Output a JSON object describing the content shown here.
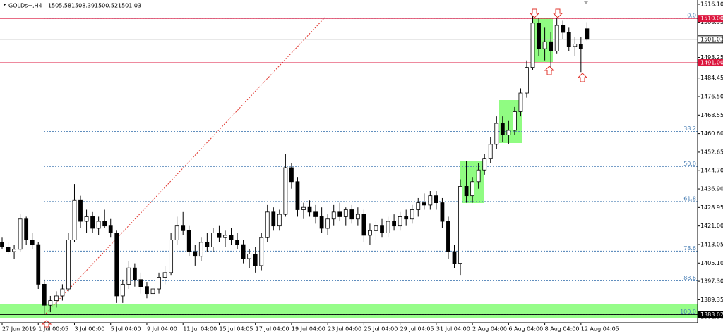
{
  "chart_data": {
    "type": "candlestick",
    "title": "GOLDs+,H4",
    "categories": [
      "27 Jun 2019",
      null,
      null,
      null,
      null,
      null,
      "1 Jul 00:05",
      null,
      null,
      null,
      null,
      null,
      "3 Jul 00:00",
      null,
      null,
      null,
      null,
      null,
      "5 Jul 04:00",
      null,
      null,
      null,
      null,
      null,
      "9 Jul 04:00",
      null,
      null,
      null,
      null,
      null,
      "11 Jul 04:00",
      null,
      null,
      null,
      null,
      null,
      "15 Jul 04:05",
      null,
      null,
      null,
      null,
      null,
      "17 Jul 04:00",
      null,
      null,
      null,
      null,
      null,
      "19 Jul 04:00",
      null,
      null,
      null,
      null,
      null,
      "23 Jul 04:00",
      null,
      null,
      null,
      null,
      null,
      "25 Jul 04:00",
      null,
      null,
      null,
      null,
      null,
      "29 Jul 04:05",
      null,
      null,
      null,
      null,
      null,
      "31 Jul 04:00",
      null,
      null,
      null,
      null,
      null,
      "2 Aug 04:00",
      null,
      null,
      null,
      null,
      null,
      "6 Aug 04:00",
      null,
      null,
      null,
      null,
      null,
      "8 Aug 04:00",
      null,
      null,
      null,
      null,
      null,
      "12 Aug 04:05",
      null
    ],
    "open": [
      1414,
      1412,
      1410,
      1411,
      1424,
      1415,
      1413,
      1396,
      1387,
      1389,
      1391,
      1394,
      1415,
      1432,
      1423,
      1425,
      1420,
      1423,
      1421,
      1418,
      1391,
      1396,
      1403,
      1398,
      1395,
      1392,
      1394,
      1399,
      1401,
      1415,
      1421,
      1419,
      1410,
      1408,
      1414,
      1412,
      1418,
      1416,
      1417,
      1415,
      1413,
      1407,
      1409,
      1404,
      1416,
      1427,
      1421,
      1426,
      1446,
      1440,
      1428,
      1429,
      1427,
      1425,
      1420,
      1424,
      1427,
      1425,
      1428,
      1424,
      1426,
      1417,
      1419,
      1421,
      1418,
      1423,
      1421,
      1425,
      1424,
      1428,
      1431,
      1430,
      1434,
      1431,
      1423,
      1410,
      1405,
      1438,
      1434,
      1440,
      1445,
      1450,
      1456,
      1465,
      1460,
      1462,
      1470,
      1478,
      1489,
      1508,
      1497,
      1500,
      1496,
      1507,
      1504,
      1498,
      1499,
      1505.58
    ],
    "high": [
      1416,
      1414,
      1413,
      1426,
      1425,
      1418,
      1414,
      1398,
      1391,
      1393,
      1396,
      1418,
      1439,
      1434,
      1428,
      1427,
      1425,
      1428,
      1424,
      1419,
      1398,
      1406,
      1405,
      1401,
      1397,
      1396,
      1401,
      1404,
      1418,
      1425,
      1427,
      1421,
      1413,
      1416,
      1418,
      1420,
      1421,
      1419,
      1420,
      1418,
      1415,
      1411,
      1412,
      1418,
      1430,
      1429,
      1428,
      1452,
      1448,
      1442,
      1431,
      1432,
      1430,
      1429,
      1426,
      1430,
      1431,
      1429,
      1430,
      1429,
      1428,
      1422,
      1423,
      1424,
      1425,
      1426,
      1427,
      1428,
      1430,
      1433,
      1435,
      1436,
      1436,
      1433,
      1425,
      1413,
      1441,
      1449,
      1442,
      1448,
      1452,
      1459,
      1468,
      1468,
      1466,
      1472,
      1480,
      1492,
      1511,
      1510,
      1506,
      1504,
      1510,
      1509,
      1506,
      1502,
      1502,
      1508.39
    ],
    "low": [
      1411,
      1409,
      1407,
      1410,
      1413,
      1411,
      1394,
      1383,
      1384,
      1386,
      1389,
      1393,
      1414,
      1420,
      1418,
      1418,
      1417,
      1420,
      1416,
      1388,
      1388,
      1394,
      1395,
      1392,
      1390,
      1387,
      1392,
      1396,
      1400,
      1413,
      1417,
      1408,
      1404,
      1406,
      1410,
      1410,
      1414,
      1412,
      1413,
      1411,
      1405,
      1403,
      1401,
      1402,
      1414,
      1419,
      1419,
      1425,
      1437,
      1425,
      1424,
      1425,
      1422,
      1418,
      1417,
      1421,
      1423,
      1421,
      1422,
      1421,
      1414,
      1413,
      1415,
      1416,
      1416,
      1419,
      1419,
      1421,
      1422,
      1425,
      1428,
      1428,
      1428,
      1420,
      1407,
      1403,
      1400,
      1431,
      1431,
      1437,
      1443,
      1448,
      1454,
      1457,
      1456,
      1460,
      1468,
      1476,
      1488,
      1494,
      1492,
      1489,
      1495,
      1501,
      1496,
      1494,
      1487,
      1500.52
    ],
    "close": [
      1412,
      1410,
      1411,
      1424,
      1415,
      1413,
      1396,
      1387,
      1389,
      1391,
      1394,
      1415,
      1432,
      1423,
      1425,
      1420,
      1423,
      1421,
      1418,
      1391,
      1396,
      1403,
      1398,
      1395,
      1392,
      1394,
      1399,
      1401,
      1415,
      1421,
      1419,
      1410,
      1408,
      1414,
      1412,
      1418,
      1416,
      1417,
      1415,
      1413,
      1407,
      1409,
      1404,
      1416,
      1427,
      1421,
      1426,
      1446,
      1440,
      1428,
      1429,
      1427,
      1425,
      1420,
      1424,
      1427,
      1425,
      1428,
      1424,
      1426,
      1417,
      1419,
      1421,
      1418,
      1423,
      1421,
      1425,
      1424,
      1428,
      1431,
      1430,
      1434,
      1431,
      1423,
      1410,
      1405,
      1438,
      1434,
      1440,
      1445,
      1450,
      1456,
      1465,
      1460,
      1462,
      1470,
      1478,
      1489,
      1508,
      1497,
      1500,
      1496,
      1507,
      1504,
      1498,
      1499,
      1497,
      1501.03
    ],
    "ylim": [
      1379.5,
      1517.9
    ],
    "yticks": [
      {
        "value": 1516.1,
        "label": "1516.10"
      },
      {
        "value": 1508.35,
        "label": "1508.35"
      },
      {
        "value": 1493.25,
        "label": "1493.25"
      },
      {
        "value": 1484.45,
        "label": "1484.45"
      },
      {
        "value": 1476.5,
        "label": "1476.50"
      },
      {
        "value": 1468.55,
        "label": "1468.55"
      },
      {
        "value": 1460.6,
        "label": "1460.60"
      },
      {
        "value": 1452.65,
        "label": "1452.65"
      },
      {
        "value": 1444.7,
        "label": "1444.70"
      },
      {
        "value": 1436.9,
        "label": "1436.90"
      },
      {
        "value": 1428.95,
        "label": "1428.95"
      },
      {
        "value": 1421,
        "label": "1421.00"
      },
      {
        "value": 1413.05,
        "label": "1413.05"
      },
      {
        "value": 1405.1,
        "label": "1405.10"
      },
      {
        "value": 1397.3,
        "label": "1397.30"
      },
      {
        "value": 1389.35,
        "label": "1389.35"
      },
      {
        "value": 1381.9,
        "label": "1381.90"
      }
    ],
    "levels": [
      {
        "value": 1510,
        "label": "1510.00",
        "color": "#dc143c"
      },
      {
        "value": 1491,
        "label": "1491.00",
        "color": "#dc143c"
      },
      {
        "value": 1383.02,
        "label": "1383.02",
        "color": "#000000"
      }
    ],
    "current_price": {
      "value": 1501.03,
      "label": "1501.03"
    },
    "fibonacci": [
      {
        "value": 1510,
        "label": "0.0"
      },
      {
        "value": 1461.5,
        "label": "38.2"
      },
      {
        "value": 1446.5,
        "label": "50.0"
      },
      {
        "value": 1431.5,
        "label": "61.8"
      },
      {
        "value": 1410.2,
        "label": "78.6"
      },
      {
        "value": 1397.5,
        "label": "88.6"
      },
      {
        "value": 1383.02,
        "label": "100.0"
      }
    ],
    "up_color": "#ffffff",
    "down_color": "#000000"
  }
}
